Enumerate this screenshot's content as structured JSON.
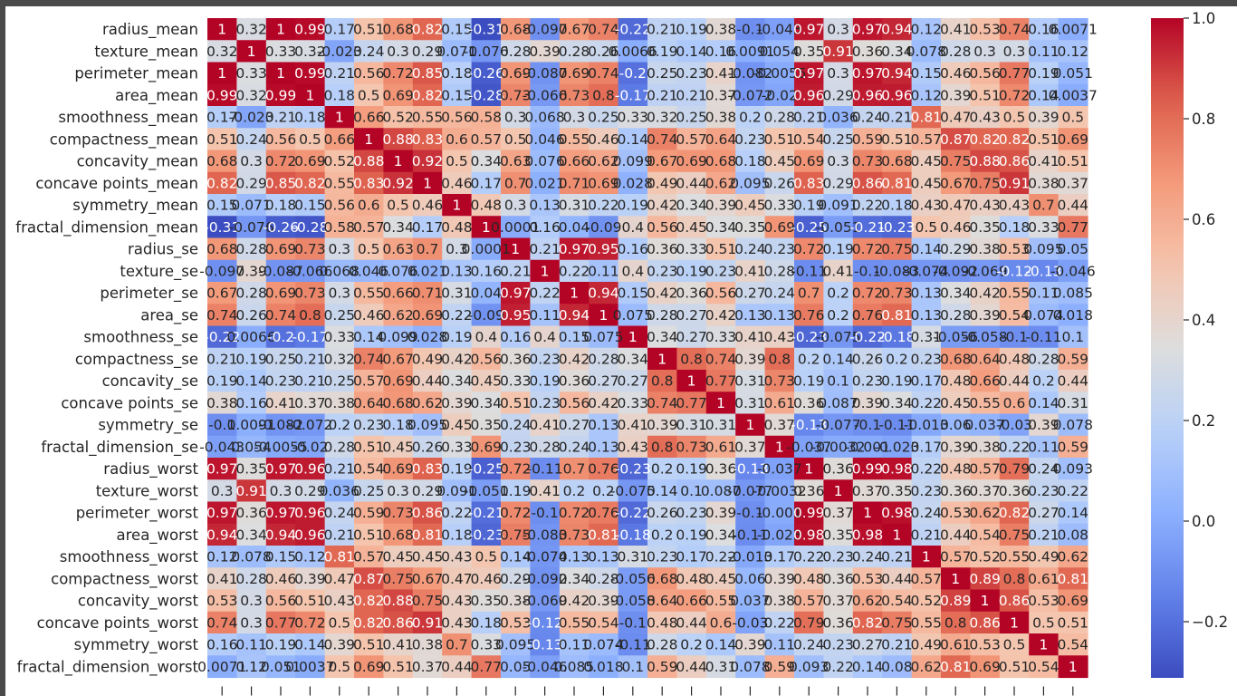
{
  "chart_data": {
    "type": "heatmap",
    "colormap": "coolwarm",
    "vmin": -0.3117,
    "vmax": 1.0,
    "colorbar_ticks": [
      "1.0",
      "0.8",
      "0.6",
      "0.4",
      "0.2",
      "0.0",
      "−0.2"
    ],
    "colorbar_tick_values": [
      1.0,
      0.8,
      0.6,
      0.4,
      0.2,
      0.0,
      -0.2
    ],
    "labels": [
      "radius_mean",
      "texture_mean",
      "perimeter_mean",
      "area_mean",
      "smoothness_mean",
      "compactness_mean",
      "concavity_mean",
      "concave points_mean",
      "symmetry_mean",
      "fractal_dimension_mean",
      "radius_se",
      "texture_se",
      "perimeter_se",
      "area_se",
      "smoothness_se",
      "compactness_se",
      "concavity_se",
      "concave points_se",
      "symmetry_se",
      "fractal_dimension_se",
      "radius_worst",
      "texture_worst",
      "perimeter_worst",
      "area_worst",
      "smoothness_worst",
      "compactness_worst",
      "concavity_worst",
      "concave points_worst",
      "symmetry_worst",
      "fractal_dimension_worst"
    ],
    "values": [
      [
        1,
        0.32,
        1,
        0.99,
        0.17,
        0.51,
        0.68,
        0.82,
        0.15,
        -0.31,
        0.68,
        -0.097,
        0.67,
        0.74,
        -0.22,
        0.21,
        0.19,
        0.38,
        -0.1,
        -0.043,
        0.97,
        0.3,
        0.97,
        0.94,
        0.12,
        0.41,
        0.53,
        0.74,
        0.16,
        0.0071
      ],
      [
        0.32,
        1,
        0.33,
        0.32,
        -0.023,
        0.24,
        0.3,
        0.29,
        0.071,
        -0.076,
        0.28,
        0.39,
        0.28,
        0.26,
        0.0066,
        0.19,
        0.14,
        0.16,
        0.0091,
        0.054,
        0.35,
        0.91,
        0.36,
        0.34,
        0.078,
        0.28,
        0.3,
        0.3,
        0.11,
        0.12
      ],
      [
        1,
        0.33,
        1,
        0.99,
        0.21,
        0.56,
        0.72,
        0.85,
        0.18,
        -0.26,
        0.69,
        -0.087,
        0.69,
        0.74,
        -0.2,
        0.25,
        0.23,
        0.41,
        -0.082,
        -0.0055,
        0.97,
        0.3,
        0.97,
        0.94,
        0.15,
        0.46,
        0.56,
        0.77,
        0.19,
        0.051
      ],
      [
        0.99,
        0.32,
        0.99,
        1,
        0.18,
        0.5,
        0.69,
        0.82,
        0.15,
        -0.28,
        0.73,
        -0.066,
        0.73,
        0.8,
        -0.17,
        0.21,
        0.21,
        0.37,
        -0.072,
        -0.02,
        0.96,
        0.29,
        0.96,
        0.96,
        0.12,
        0.39,
        0.51,
        0.72,
        0.14,
        0.0037
      ],
      [
        0.17,
        -0.023,
        0.21,
        0.18,
        1,
        0.66,
        0.52,
        0.55,
        0.56,
        0.58,
        0.3,
        0.068,
        0.3,
        0.25,
        0.33,
        0.32,
        0.25,
        0.38,
        0.2,
        0.28,
        0.21,
        0.036,
        0.24,
        0.21,
        0.81,
        0.47,
        0.43,
        0.5,
        0.39,
        0.5
      ],
      [
        0.51,
        0.24,
        0.56,
        0.5,
        0.66,
        1,
        0.88,
        0.83,
        0.6,
        0.57,
        0.5,
        0.046,
        0.55,
        0.46,
        0.14,
        0.74,
        0.57,
        0.64,
        0.23,
        0.51,
        0.54,
        0.25,
        0.59,
        0.51,
        0.57,
        0.87,
        0.82,
        0.82,
        0.51,
        0.69
      ],
      [
        0.68,
        0.3,
        0.72,
        0.69,
        0.52,
        0.88,
        1,
        0.92,
        0.5,
        0.34,
        0.63,
        0.076,
        0.66,
        0.62,
        0.099,
        0.67,
        0.69,
        0.68,
        0.18,
        0.45,
        0.69,
        0.3,
        0.73,
        0.68,
        0.45,
        0.75,
        0.88,
        0.86,
        0.41,
        0.51
      ],
      [
        0.82,
        0.29,
        0.85,
        0.82,
        0.55,
        0.83,
        0.92,
        1,
        0.46,
        0.17,
        0.7,
        0.021,
        0.71,
        0.69,
        0.028,
        0.49,
        0.44,
        0.62,
        0.095,
        0.26,
        0.83,
        0.29,
        0.86,
        0.81,
        0.45,
        0.67,
        0.75,
        0.91,
        0.38,
        0.37
      ],
      [
        0.15,
        0.071,
        0.18,
        0.15,
        0.56,
        0.6,
        0.5,
        0.46,
        1,
        0.48,
        0.3,
        0.13,
        0.31,
        0.22,
        0.19,
        0.42,
        0.34,
        0.39,
        0.45,
        0.33,
        0.19,
        0.091,
        0.22,
        0.18,
        0.43,
        0.47,
        0.43,
        0.43,
        0.7,
        0.44
      ],
      [
        -0.31,
        -0.076,
        -0.26,
        -0.28,
        0.58,
        0.57,
        0.34,
        0.17,
        0.48,
        1,
        0.0001,
        0.16,
        0.04,
        -0.09,
        0.4,
        0.56,
        0.45,
        0.34,
        0.35,
        0.69,
        -0.25,
        -0.051,
        -0.21,
        -0.23,
        0.5,
        0.46,
        0.35,
        0.18,
        0.33,
        0.77
      ],
      [
        0.68,
        0.28,
        0.69,
        0.73,
        0.3,
        0.5,
        0.63,
        0.7,
        0.3,
        0.0001,
        1,
        0.21,
        0.97,
        0.95,
        0.16,
        0.36,
        0.33,
        0.51,
        0.24,
        0.23,
        0.72,
        0.19,
        0.72,
        0.75,
        0.14,
        0.29,
        0.38,
        0.53,
        0.095,
        0.05
      ],
      [
        -0.097,
        0.39,
        -0.087,
        -0.066,
        0.068,
        0.046,
        0.076,
        0.021,
        0.13,
        0.16,
        0.21,
        1,
        0.22,
        0.11,
        0.4,
        0.23,
        0.19,
        0.23,
        0.41,
        0.28,
        -0.11,
        0.41,
        -0.1,
        -0.083,
        -0.074,
        -0.092,
        -0.069,
        -0.12,
        -0.13,
        -0.046
      ],
      [
        0.67,
        0.28,
        0.69,
        0.73,
        0.3,
        0.55,
        0.66,
        0.71,
        0.31,
        0.04,
        0.97,
        0.22,
        1,
        0.94,
        0.15,
        0.42,
        0.36,
        0.56,
        0.27,
        0.24,
        0.7,
        0.2,
        0.72,
        0.73,
        0.13,
        0.34,
        0.42,
        0.55,
        0.11,
        0.085
      ],
      [
        0.74,
        0.26,
        0.74,
        0.8,
        0.25,
        0.46,
        0.62,
        0.69,
        0.22,
        -0.09,
        0.95,
        0.11,
        0.94,
        1,
        0.075,
        0.28,
        0.27,
        0.42,
        0.13,
        0.13,
        0.76,
        0.2,
        0.76,
        0.81,
        0.13,
        0.28,
        0.39,
        0.54,
        0.074,
        0.018
      ],
      [
        -0.22,
        0.0066,
        -0.2,
        -0.17,
        0.33,
        0.14,
        0.099,
        0.028,
        0.19,
        0.4,
        0.16,
        0.4,
        0.15,
        0.075,
        1,
        0.34,
        0.27,
        0.33,
        0.41,
        0.43,
        -0.23,
        -0.075,
        -0.22,
        -0.18,
        0.31,
        -0.056,
        -0.058,
        -0.1,
        -0.11,
        0.1
      ],
      [
        0.21,
        0.19,
        0.25,
        0.21,
        0.32,
        0.74,
        0.67,
        0.49,
        0.42,
        0.56,
        0.36,
        0.23,
        0.42,
        0.28,
        0.34,
        1,
        0.8,
        0.74,
        0.39,
        0.8,
        0.2,
        0.14,
        0.26,
        0.2,
        0.23,
        0.68,
        0.64,
        0.48,
        0.28,
        0.59
      ],
      [
        0.19,
        0.14,
        0.23,
        0.21,
        0.25,
        0.57,
        0.69,
        0.44,
        0.34,
        0.45,
        0.33,
        0.19,
        0.36,
        0.27,
        0.27,
        0.8,
        1,
        0.77,
        0.31,
        0.73,
        0.19,
        0.1,
        0.23,
        0.19,
        0.17,
        0.48,
        0.66,
        0.44,
        0.2,
        0.44
      ],
      [
        0.38,
        0.16,
        0.41,
        0.37,
        0.38,
        0.64,
        0.68,
        0.62,
        0.39,
        0.34,
        0.51,
        0.23,
        0.56,
        0.42,
        0.33,
        0.74,
        0.77,
        1,
        0.31,
        0.61,
        0.36,
        0.087,
        0.39,
        0.34,
        0.22,
        0.45,
        0.55,
        0.6,
        0.14,
        0.31
      ],
      [
        -0.1,
        0.0091,
        -0.082,
        -0.072,
        0.2,
        0.23,
        0.18,
        0.095,
        0.45,
        0.35,
        0.24,
        0.41,
        0.27,
        0.13,
        0.41,
        0.39,
        0.31,
        0.31,
        1,
        0.37,
        -0.13,
        -0.077,
        -0.1,
        -0.11,
        -0.013,
        0.06,
        0.037,
        -0.03,
        0.39,
        0.078
      ],
      [
        -0.043,
        0.054,
        -0.0055,
        -0.02,
        0.28,
        0.51,
        0.45,
        0.26,
        0.33,
        0.69,
        0.23,
        0.28,
        0.24,
        0.13,
        0.43,
        0.8,
        0.73,
        0.61,
        0.37,
        1,
        -0.037,
        -0.0032,
        -0.001,
        -0.023,
        0.17,
        0.39,
        0.38,
        0.22,
        0.11,
        0.59
      ],
      [
        0.97,
        0.35,
        0.97,
        0.96,
        0.21,
        0.54,
        0.69,
        0.83,
        0.19,
        -0.25,
        0.72,
        -0.11,
        0.7,
        0.76,
        -0.23,
        0.2,
        0.19,
        0.36,
        -0.13,
        -0.037,
        1,
        0.36,
        0.99,
        0.98,
        0.22,
        0.48,
        0.57,
        0.79,
        0.24,
        0.093
      ],
      [
        0.3,
        0.91,
        0.3,
        0.29,
        0.036,
        0.25,
        0.3,
        0.29,
        0.091,
        -0.051,
        0.19,
        0.41,
        0.2,
        0.2,
        -0.075,
        0.14,
        0.1,
        0.087,
        -0.077,
        -0.0032,
        0.36,
        1,
        0.37,
        0.35,
        0.23,
        0.36,
        0.37,
        0.36,
        0.23,
        0.22
      ],
      [
        0.97,
        0.36,
        0.97,
        0.96,
        0.24,
        0.59,
        0.73,
        0.86,
        0.22,
        -0.21,
        0.72,
        -0.1,
        0.72,
        0.76,
        -0.22,
        0.26,
        0.23,
        0.39,
        -0.1,
        -0.001,
        0.99,
        0.37,
        1,
        0.98,
        0.24,
        0.53,
        0.62,
        0.82,
        0.27,
        0.14
      ],
      [
        0.94,
        0.34,
        0.94,
        0.96,
        0.21,
        0.51,
        0.68,
        0.81,
        0.18,
        -0.23,
        0.75,
        -0.083,
        0.73,
        0.81,
        -0.18,
        0.2,
        0.19,
        0.34,
        -0.11,
        -0.023,
        0.98,
        0.35,
        0.98,
        1,
        0.21,
        0.44,
        0.54,
        0.75,
        0.21,
        0.08
      ],
      [
        0.12,
        0.078,
        0.15,
        0.12,
        0.81,
        0.57,
        0.45,
        0.45,
        0.43,
        0.5,
        0.14,
        -0.074,
        0.13,
        0.13,
        0.31,
        0.23,
        0.17,
        0.22,
        -0.013,
        0.17,
        0.22,
        0.23,
        0.24,
        0.21,
        1,
        0.57,
        0.52,
        0.55,
        0.49,
        0.62
      ],
      [
        0.41,
        0.28,
        0.46,
        0.39,
        0.47,
        0.87,
        0.75,
        0.67,
        0.47,
        0.46,
        0.29,
        -0.092,
        0.34,
        0.28,
        -0.056,
        0.68,
        0.48,
        0.45,
        0.06,
        0.39,
        0.48,
        0.36,
        0.53,
        0.44,
        0.57,
        1,
        0.89,
        0.8,
        0.61,
        0.81
      ],
      [
        0.53,
        0.3,
        0.56,
        0.51,
        0.43,
        0.82,
        0.88,
        0.75,
        0.43,
        0.35,
        0.38,
        -0.069,
        0.42,
        0.39,
        -0.058,
        0.64,
        0.66,
        0.55,
        0.037,
        0.38,
        0.57,
        0.37,
        0.62,
        0.54,
        0.52,
        0.89,
        1,
        0.86,
        0.53,
        0.69
      ],
      [
        0.74,
        0.3,
        0.77,
        0.72,
        0.5,
        0.82,
        0.86,
        0.91,
        0.43,
        0.18,
        0.53,
        -0.12,
        0.55,
        0.54,
        -0.1,
        0.48,
        0.44,
        0.6,
        -0.03,
        0.22,
        0.79,
        0.36,
        0.82,
        0.75,
        0.55,
        0.8,
        0.86,
        1,
        0.5,
        0.51
      ],
      [
        0.16,
        0.11,
        0.19,
        0.14,
        0.39,
        0.51,
        0.41,
        0.38,
        0.7,
        0.33,
        0.095,
        -0.13,
        0.11,
        0.074,
        -0.11,
        0.28,
        0.2,
        0.14,
        0.39,
        0.11,
        0.24,
        0.23,
        0.27,
        0.21,
        0.49,
        0.61,
        0.53,
        0.5,
        1,
        0.54
      ],
      [
        0.0071,
        0.12,
        0.051,
        0.0037,
        0.5,
        0.69,
        0.51,
        0.37,
        0.44,
        0.77,
        0.05,
        -0.046,
        0.085,
        0.018,
        0.1,
        0.59,
        0.44,
        0.31,
        0.078,
        0.59,
        0.093,
        0.22,
        0.14,
        0.08,
        0.62,
        0.81,
        0.69,
        0.51,
        0.54,
        1
      ]
    ]
  }
}
